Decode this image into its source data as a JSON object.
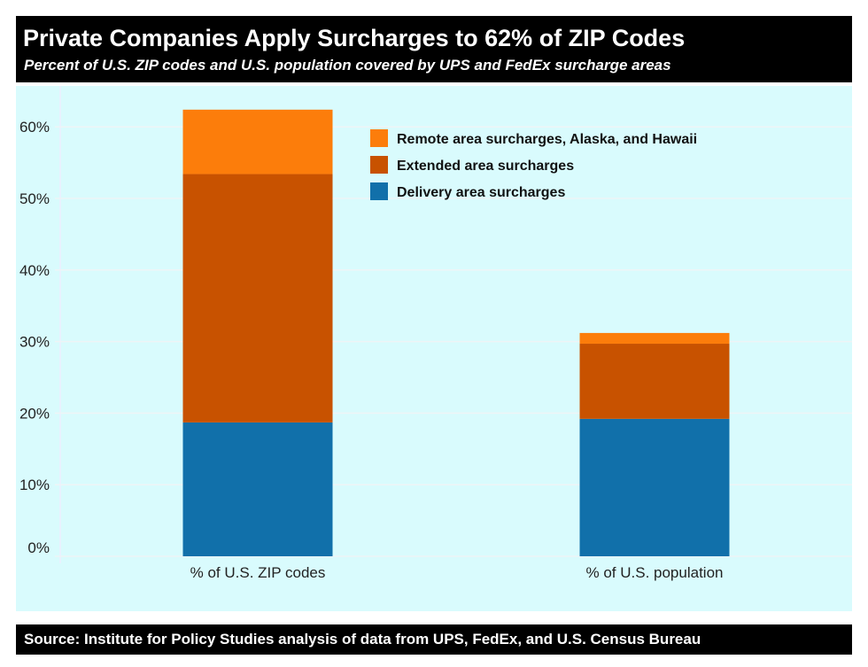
{
  "chart_data": {
    "type": "bar",
    "stacked": true,
    "title": "Private Companies Apply Surcharges to 62% of ZIP Codes",
    "subtitle": "Percent of U.S. ZIP codes and U.S. population covered by UPS and FedEx surcharge areas",
    "source": "Source: Institute for Policy Studies analysis of data from UPS, FedEx, and U.S. Census Bureau",
    "categories": [
      "% of U.S. ZIP codes",
      "% of U.S. population"
    ],
    "series": [
      {
        "name": "Delivery area surcharges",
        "color": "#1170aa",
        "values": [
          18.7,
          19.2
        ]
      },
      {
        "name": "Extended area surcharges",
        "color": "#c85200",
        "values": [
          34.7,
          10.5
        ]
      },
      {
        "name": "Remote area surcharges, Alaska, and Hawaii",
        "color": "#fc7d0b",
        "values": [
          9.0,
          1.5
        ]
      }
    ],
    "legend_order": [
      2,
      1,
      0
    ],
    "yticks": [
      "0%",
      "10%",
      "20%",
      "30%",
      "40%",
      "50%",
      "60%"
    ],
    "ytick_values": [
      0,
      10,
      20,
      30,
      40,
      50,
      60
    ],
    "ylim": [
      0,
      64
    ],
    "grid": true,
    "legend_position": "top-right"
  }
}
